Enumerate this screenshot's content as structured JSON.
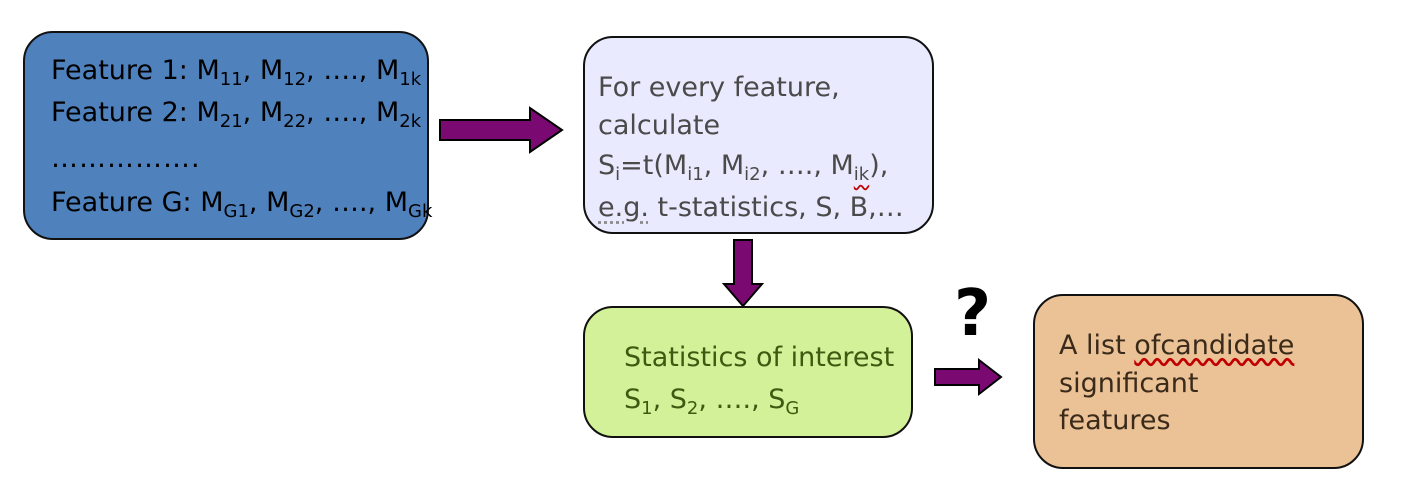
{
  "features_box": {
    "line1": {
      "label": "Feature 1: M",
      "subs": [
        "11",
        "12",
        "1k"
      ],
      "sep": ", M",
      "dots": ", …., M"
    },
    "line2": {
      "label": "Feature 2: M",
      "subs": [
        "21",
        "22",
        "2k"
      ],
      "sep": ", M",
      "dots": ", …., M"
    },
    "ellipsis": "…………….",
    "line4": {
      "label": "Feature G: M",
      "subs": [
        "G1",
        "G2",
        "Gk"
      ],
      "sep": ", M",
      "dots": ", …., M"
    }
  },
  "calc_box": {
    "line1": "For every feature,",
    "line2": "calculate",
    "formula": {
      "s": "S",
      "s_sub": "i",
      "eq": "=t(M",
      "sub1": "i1",
      "sep": ", M",
      "sub2": "i2",
      "dots": ", …., ",
      "m": "M",
      "sub3": "ik",
      "close": "),"
    },
    "line4_eg": "e.g.",
    "line4_rest": " t-statistics, S, B,…"
  },
  "stats_box": {
    "line1": "Statistics of interest",
    "line2": {
      "s1": "S",
      "sub1": "1",
      "sep1": ", S",
      "sub2": "2",
      "dots": ", …., S",
      "sub3": "G"
    }
  },
  "result_box": {
    "line1_a": "A list ",
    "line1_b": "ofcandidate",
    "line2": "significant",
    "line3": "features"
  },
  "question_mark": "?",
  "colors": {
    "features_fill": "#4f81bd",
    "calc_fill": "#eaeaff",
    "stats_fill": "#d3f198",
    "result_fill": "#ebc196",
    "arrow_fill": "#7a0a72"
  }
}
